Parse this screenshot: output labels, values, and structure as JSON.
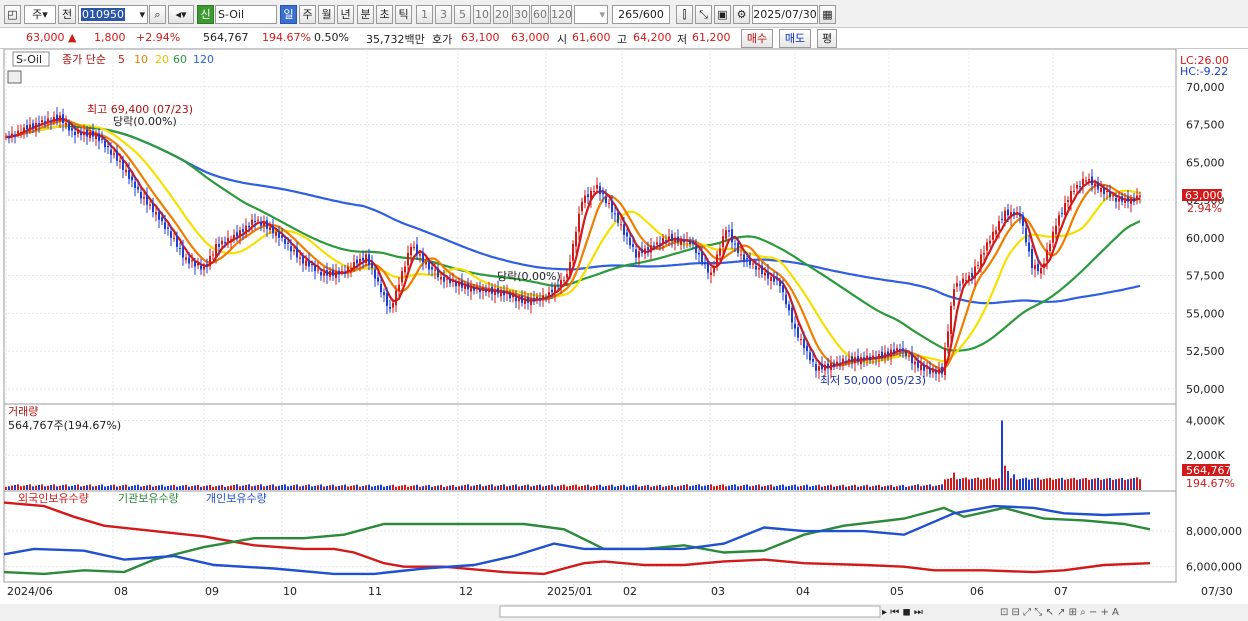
{
  "toolbar": {
    "sym1": "주",
    "sym2": "전",
    "code": "010950",
    "name": "S-Oil",
    "period_sel": "신",
    "periods": [
      "일",
      "주",
      "월",
      "년",
      "분",
      "초",
      "틱"
    ],
    "period_active": 0,
    "nums": [
      "1",
      "3",
      "5",
      "10",
      "20",
      "30",
      "60",
      "120"
    ],
    "count": "265",
    "count_total": "/600",
    "date": "2025/07/30"
  },
  "info": {
    "price": "63,000",
    "arrow": "▲",
    "change": "1,800",
    "change_pct": "+2.94%",
    "volume": "564,767",
    "vol_pct": "194.67%",
    "turnover_pct": "0.50%",
    "amount": "35,732백만",
    "bid_label": "호가",
    "bid1": "63,100",
    "bid2": "63,000",
    "open_label": "시",
    "open": "61,600",
    "high_label": "고",
    "high": "64,200",
    "low_label": "저",
    "low": "61,200",
    "buy": "매수",
    "sell": "매도",
    "eval": "평"
  },
  "chart_data": [
    {
      "type": "candlestick",
      "title": "S-Oil",
      "legend": "종가 단순",
      "ma_periods": [
        "5",
        "10",
        "20",
        "60",
        "120"
      ],
      "ylim": [
        49000,
        72500
      ],
      "yticks": [
        "70,000",
        "67,500",
        "65,000",
        "62,500",
        "60,000",
        "57,500",
        "55,000",
        "52,500",
        "50,000"
      ],
      "x_labels": [
        "2024/06",
        "08",
        "09",
        "10",
        "11",
        "12",
        "2025/01",
        "02",
        "03",
        "04",
        "05",
        "06",
        "07",
        "07/30"
      ],
      "last_close": "63,000",
      "last_pct": "2.94%",
      "lc": "LC:26.00",
      "hc": "HC:-9.22",
      "annotation_high": "최고 69,400 (07/23)",
      "annotation_low": "최저 50,000 (05/23)",
      "annotation_upper": "당락(0.00%)",
      "annotation_lower": "당락(0.00%)",
      "keypoints": [
        [
          0,
          66600
        ],
        [
          8,
          67400
        ],
        [
          18,
          68000
        ],
        [
          22,
          67000
        ],
        [
          30,
          66800
        ],
        [
          38,
          65000
        ],
        [
          45,
          62800
        ],
        [
          50,
          61600
        ],
        [
          55,
          60200
        ],
        [
          60,
          58600
        ],
        [
          66,
          58000
        ],
        [
          70,
          59500
        ],
        [
          78,
          60400
        ],
        [
          83,
          61300
        ],
        [
          90,
          60400
        ],
        [
          98,
          58700
        ],
        [
          105,
          57700
        ],
        [
          112,
          57800
        ],
        [
          120,
          58900
        ],
        [
          128,
          55300
        ],
        [
          135,
          59600
        ],
        [
          145,
          57200
        ],
        [
          155,
          56500
        ],
        [
          165,
          56300
        ],
        [
          172,
          55700
        ],
        [
          180,
          56000
        ],
        [
          187,
          57400
        ],
        [
          192,
          62400
        ],
        [
          197,
          63300
        ],
        [
          202,
          61800
        ],
        [
          210,
          58800
        ],
        [
          220,
          59900
        ],
        [
          228,
          59700
        ],
        [
          235,
          57500
        ],
        [
          240,
          60600
        ],
        [
          245,
          58700
        ],
        [
          252,
          57700
        ],
        [
          258,
          56900
        ],
        [
          263,
          53900
        ],
        [
          270,
          51300
        ],
        [
          280,
          51900
        ],
        [
          290,
          52100
        ],
        [
          298,
          52700
        ],
        [
          303,
          51700
        ],
        [
          308,
          51200
        ],
        [
          312,
          51200
        ],
        [
          316,
          56800
        ],
        [
          322,
          57600
        ],
        [
          327,
          59600
        ],
        [
          333,
          61700
        ],
        [
          338,
          61600
        ],
        [
          342,
          58200
        ],
        [
          345,
          57900
        ],
        [
          350,
          61000
        ],
        [
          355,
          63100
        ],
        [
          360,
          64000
        ],
        [
          365,
          63300
        ],
        [
          370,
          62600
        ],
        [
          376,
          62600
        ],
        [
          378,
          63000
        ]
      ]
    },
    {
      "type": "bar",
      "title": "거래량",
      "current": "564,767주(194.67%)",
      "yticks": [
        "4,000K",
        "2,000K"
      ],
      "last_value": "564,767",
      "last_pct": "194.67%"
    },
    {
      "type": "line",
      "series": [
        {
          "name": "외국인보유수량",
          "color": "#d21a1a"
        },
        {
          "name": "기관보유수량",
          "color": "#2a8a3a"
        },
        {
          "name": "개인보유수량",
          "color": "#2050d0"
        }
      ],
      "yticks": [
        "8,000,000",
        "6,000,000"
      ]
    }
  ],
  "colors": {
    "up": "#d21a1a",
    "down": "#1a3fd2",
    "ma5": "#d21a1a",
    "ma10": "#f07d00",
    "ma20": "#f5e000",
    "ma60": "#2a9a3a",
    "ma120": "#2f5fe0"
  }
}
